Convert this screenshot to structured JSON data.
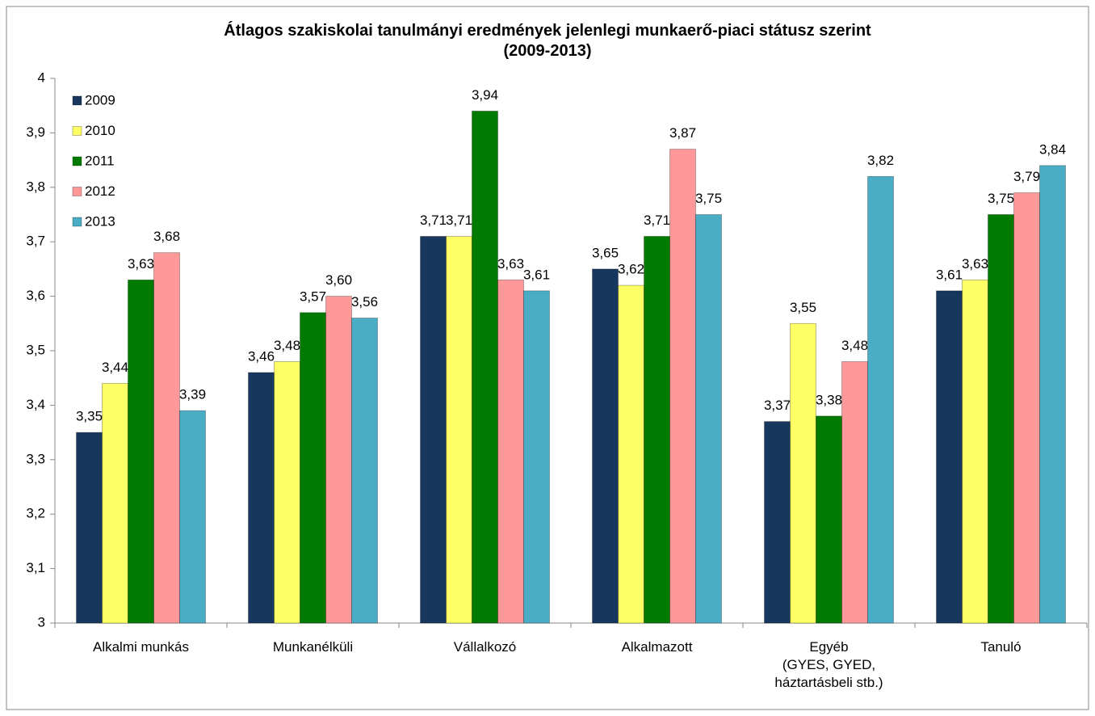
{
  "chart_data": {
    "type": "bar",
    "title": "Átlagos szakiskolai tanulmányi eredmények jelenlegi munkaerő-piaci státusz szerint\n(2009-2013)",
    "categories": [
      "Alkalmi munkás",
      "Munkanélküli",
      "Vállalkozó",
      "Alkalmazott",
      "Egyéb\n(GYES, GYED,\nháztartásbeli stb.)",
      "Tanuló"
    ],
    "series": [
      {
        "name": "2009",
        "color": "#17375e",
        "values": [
          3.35,
          3.46,
          3.71,
          3.65,
          3.37,
          3.61
        ],
        "value_labels": [
          "3,35",
          "3,46",
          "3,71",
          "3,65",
          "3,37",
          "3,61"
        ]
      },
      {
        "name": "2010",
        "color": "#ffff66",
        "values": [
          3.44,
          3.48,
          3.71,
          3.62,
          3.55,
          3.63
        ],
        "value_labels": [
          "3,44",
          "3,48",
          "3,71",
          "3,62",
          "3,55",
          "3,63"
        ]
      },
      {
        "name": "2011",
        "color": "#007a00",
        "values": [
          3.63,
          3.57,
          3.94,
          3.71,
          3.38,
          3.75
        ],
        "value_labels": [
          "3,63",
          "3,57",
          "3,94",
          "3,71",
          "3,38",
          "3,75"
        ]
      },
      {
        "name": "2012",
        "color": "#ff9999",
        "values": [
          3.68,
          3.6,
          3.63,
          3.87,
          3.48,
          3.79
        ],
        "value_labels": [
          "3,68",
          "3,60",
          "3,63",
          "3,87",
          "3,48",
          "3,79"
        ]
      },
      {
        "name": "2013",
        "color": "#4bacc6",
        "values": [
          3.39,
          3.56,
          3.61,
          3.75,
          3.82,
          3.84
        ],
        "value_labels": [
          "3,39",
          "3,56",
          "3,61",
          "3,75",
          "3,82",
          "3,84"
        ]
      }
    ],
    "ylim": [
      3,
      4
    ],
    "yticks": [
      3,
      {
        "value": 3.1,
        "label": "3,1"
      },
      {
        "value": 3.2,
        "label": "3,2"
      },
      {
        "value": 3.3,
        "label": "3,3"
      },
      {
        "value": 3.4,
        "label": "3,4"
      },
      {
        "value": 3.5,
        "label": "3,5"
      },
      {
        "value": 3.6,
        "label": "3,6"
      },
      {
        "value": 3.7,
        "label": "3,7"
      },
      {
        "value": 3.8,
        "label": "3,8"
      },
      {
        "value": 3.9,
        "label": "3,9"
      },
      4
    ],
    "grid": false,
    "legend": "top-left"
  }
}
